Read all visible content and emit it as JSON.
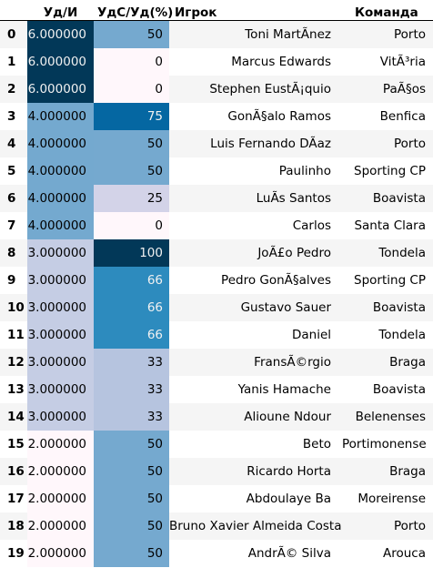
{
  "header": {
    "index_label": "",
    "ud_label": "Уд/И",
    "ratio_label": "УдС/Уд(%)",
    "player_label": "Игрок",
    "team_label": "Команда"
  },
  "colors": {
    "ud_6": "#023858",
    "ud_4": "#74a9cf",
    "ud_3": "#c5cde4",
    "ud_2": "#fff7fb",
    "ratio_100": "#023858",
    "ratio_75": "#0567a2",
    "ratio_66": "#2d8bbe",
    "ratio_50": "#75a9cf",
    "ratio_33": "#b6c4df",
    "ratio_25": "#d3d3e8",
    "ratio_0": "#fff7fb"
  },
  "rows": [
    {
      "index": "0",
      "ud": "6.000000",
      "ratio": "50",
      "player": "Toni MartÃ­nez",
      "team": "Porto"
    },
    {
      "index": "1",
      "ud": "6.000000",
      "ratio": "0",
      "player": "Marcus Edwards",
      "team": "VitÃ³ria"
    },
    {
      "index": "2",
      "ud": "6.000000",
      "ratio": "0",
      "player": "Stephen EustÃ¡quio",
      "team": "PaÃ§os"
    },
    {
      "index": "3",
      "ud": "4.000000",
      "ratio": "75",
      "player": "GonÃ§alo Ramos",
      "team": "Benfica"
    },
    {
      "index": "4",
      "ud": "4.000000",
      "ratio": "50",
      "player": "Luis Fernando DÃ­az",
      "team": "Porto"
    },
    {
      "index": "5",
      "ud": "4.000000",
      "ratio": "50",
      "player": "Paulinho",
      "team": "Sporting CP"
    },
    {
      "index": "6",
      "ud": "4.000000",
      "ratio": "25",
      "player": "LuÃ­s Santos",
      "team": "Boavista"
    },
    {
      "index": "7",
      "ud": "4.000000",
      "ratio": "0",
      "player": "Carlos",
      "team": "Santa Clara"
    },
    {
      "index": "8",
      "ud": "3.000000",
      "ratio": "100",
      "player": "JoÃ£o Pedro",
      "team": "Tondela"
    },
    {
      "index": "9",
      "ud": "3.000000",
      "ratio": "66",
      "player": "Pedro GonÃ§alves",
      "team": "Sporting CP"
    },
    {
      "index": "10",
      "ud": "3.000000",
      "ratio": "66",
      "player": "Gustavo Sauer",
      "team": "Boavista"
    },
    {
      "index": "11",
      "ud": "3.000000",
      "ratio": "66",
      "player": "Daniel",
      "team": "Tondela"
    },
    {
      "index": "12",
      "ud": "3.000000",
      "ratio": "33",
      "player": "FransÃ©rgio",
      "team": "Braga"
    },
    {
      "index": "13",
      "ud": "3.000000",
      "ratio": "33",
      "player": "Yanis Hamache",
      "team": "Boavista"
    },
    {
      "index": "14",
      "ud": "3.000000",
      "ratio": "33",
      "player": "Alioune Ndour",
      "team": "Belenenses"
    },
    {
      "index": "15",
      "ud": "2.000000",
      "ratio": "50",
      "player": "Beto",
      "team": "Portimonense"
    },
    {
      "index": "16",
      "ud": "2.000000",
      "ratio": "50",
      "player": "Ricardo Horta",
      "team": "Braga"
    },
    {
      "index": "17",
      "ud": "2.000000",
      "ratio": "50",
      "player": "Abdoulaye Ba",
      "team": "Moreirense"
    },
    {
      "index": "18",
      "ud": "2.000000",
      "ratio": "50",
      "player": "Bruno Xavier Almeida Costa",
      "team": "Porto"
    },
    {
      "index": "19",
      "ud": "2.000000",
      "ratio": "50",
      "player": "AndrÃ© Silva",
      "team": "Arouca"
    }
  ]
}
